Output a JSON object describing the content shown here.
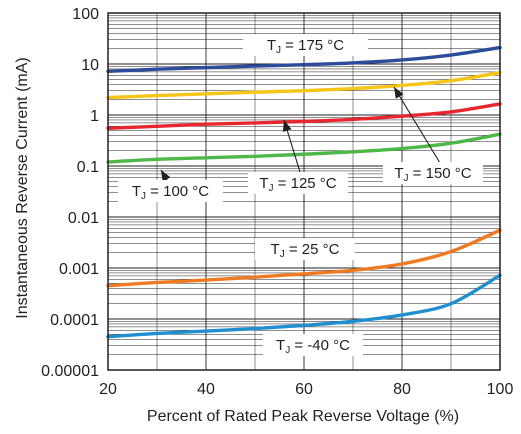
{
  "chart_data": {
    "type": "line",
    "xlabel": "Percent of Rated Peak Reverse Voltage (%)",
    "ylabel": "Instantaneous Reverse Current (mA)",
    "x_scale": "linear",
    "y_scale": "log",
    "xlim": [
      20,
      100
    ],
    "ylim": [
      1e-05,
      100
    ],
    "x_ticks": [
      "20",
      "40",
      "60",
      "80",
      "100"
    ],
    "y_ticks": [
      "0.00001",
      "0.0001",
      "0.001",
      "0.01",
      "0.1",
      "1",
      "10",
      "100"
    ],
    "grid": true,
    "x": [
      20,
      30,
      40,
      50,
      60,
      70,
      80,
      90,
      100
    ],
    "series": [
      {
        "name": "T_J = 175 °C",
        "color": "#2b4b9b",
        "values": [
          7.2,
          7.9,
          8.5,
          9.1,
          9.7,
          10.5,
          12.0,
          15.0,
          21.0
        ]
      },
      {
        "name": "T_J = 150 °C",
        "color": "#f5c518",
        "values": [
          2.2,
          2.4,
          2.6,
          2.8,
          3.0,
          3.3,
          3.8,
          4.7,
          6.8
        ]
      },
      {
        "name": "T_J = 125 °C",
        "color": "#e8262e",
        "values": [
          0.55,
          0.6,
          0.66,
          0.7,
          0.75,
          0.82,
          0.95,
          1.15,
          1.65
        ]
      },
      {
        "name": "T_J = 100 °C",
        "color": "#4db848",
        "values": [
          0.12,
          0.135,
          0.145,
          0.155,
          0.17,
          0.19,
          0.22,
          0.28,
          0.42
        ]
      },
      {
        "name": "T_J = 25 °C",
        "color": "#f07a22",
        "values": [
          0.00045,
          0.00052,
          0.00058,
          0.00066,
          0.00077,
          0.0009,
          0.0012,
          0.0021,
          0.0055
        ]
      },
      {
        "name": "T_J = -40 °C",
        "color": "#1f8fcf",
        "values": [
          4.5e-05,
          5.2e-05,
          5.8e-05,
          6.5e-05,
          7.5e-05,
          9e-05,
          0.00012,
          0.0002,
          0.00072
        ]
      }
    ],
    "annotations": [
      {
        "main": "T",
        "sub": "J",
        "rest": " = 175 °C"
      },
      {
        "main": "T",
        "sub": "J",
        "rest": " = 150 °C"
      },
      {
        "main": "T",
        "sub": "J",
        "rest": " = 125 °C"
      },
      {
        "main": "T",
        "sub": "J",
        "rest": " = 100 °C"
      },
      {
        "main": "T",
        "sub": "J",
        "rest": " = 25 °C"
      },
      {
        "main": "T",
        "sub": "J",
        "rest": " = -40 °C"
      }
    ]
  }
}
